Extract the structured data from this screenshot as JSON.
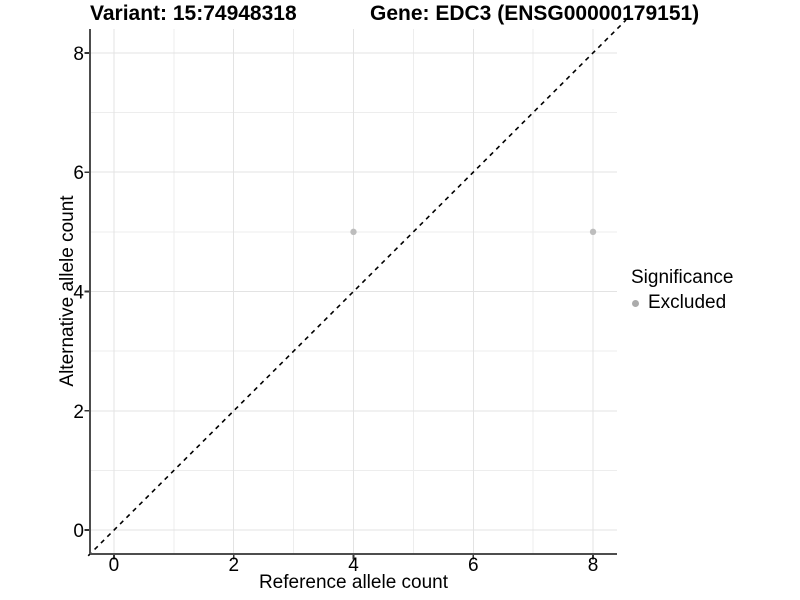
{
  "chart_data": {
    "type": "scatter",
    "title_left": "Variant: 15:74948318",
    "title_right": "Gene: EDC3 (ENSG00000179151)",
    "xlabel": "Reference allele count",
    "ylabel": "Alternative allele count",
    "xlim": [
      -0.4,
      8.4
    ],
    "ylim": [
      -0.4,
      8.4
    ],
    "x_ticks": [
      0,
      2,
      4,
      6,
      8
    ],
    "y_ticks": [
      0,
      2,
      4,
      6,
      8
    ],
    "x_minor_ticks": [
      1,
      3,
      5,
      7
    ],
    "y_minor_ticks": [
      1,
      3,
      5,
      7
    ],
    "grid": true,
    "points": [
      {
        "x": 4,
        "y": 5,
        "significance": "Excluded"
      },
      {
        "x": 8,
        "y": 5,
        "significance": "Excluded"
      }
    ],
    "identity_line": {
      "slope": 1,
      "intercept": 0,
      "style": "dashed",
      "color": "#000000"
    },
    "legend": {
      "position": "right",
      "title": "Significance",
      "items": [
        {
          "label": "Excluded",
          "color": "#ababab"
        }
      ]
    },
    "style": {
      "background": "#ffffff",
      "point_color": "#bdbdbd",
      "grid_major_color": "#e3e3e3",
      "grid_minor_color": "#ededed",
      "axis_line_color": "#4d4d4d",
      "tick_color": "#333333",
      "text_color": "#000000"
    }
  }
}
